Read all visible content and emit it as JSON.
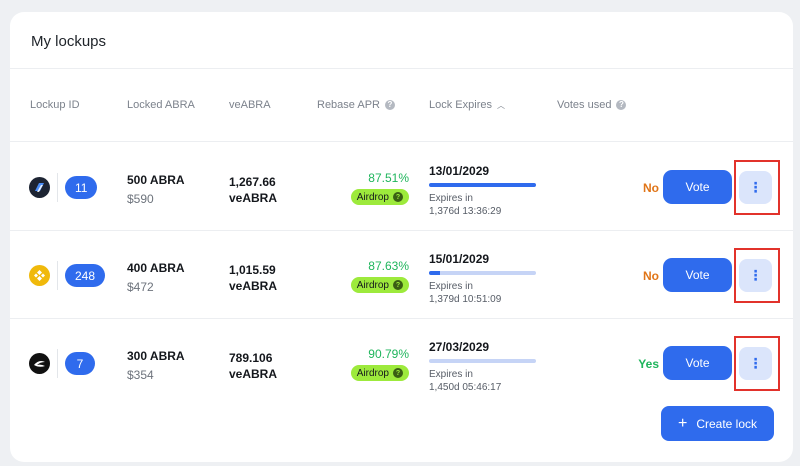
{
  "title": "My lockups",
  "columns": {
    "lockup_id": "Lockup ID",
    "locked_abra": "Locked ABRA",
    "veabra": "veABRA",
    "rebase_apr": "Rebase APR",
    "lock_expires": "Lock Expires",
    "votes_used": "Votes used"
  },
  "rows": [
    {
      "token_icon": "abracadabra-token-icon",
      "id": "11",
      "locked_amount": "500 ABRA",
      "locked_usd": "$590",
      "veabra_value": "1,267.66",
      "veabra_unit": "veABRA",
      "apr": "87.51%",
      "airdrop_label": "Airdrop",
      "expires_date": "13/01/2029",
      "expires_progress": 1.0,
      "expires_in_label": "Expires in",
      "expires_in_value": "1,376d 13:36:29",
      "votes_used": "No",
      "vote_label": "Vote",
      "menu_glyph": "⋮"
    },
    {
      "token_icon": "binance-token-icon",
      "id": "248",
      "locked_amount": "400 ABRA",
      "locked_usd": "$472",
      "veabra_value": "1,015.59",
      "veabra_unit": "veABRA",
      "apr": "87.63%",
      "airdrop_label": "Airdrop",
      "expires_date": "15/01/2029",
      "expires_progress": 0.1,
      "expires_in_label": "Expires in",
      "expires_in_value": "1,379d 10:51:09",
      "votes_used": "No",
      "vote_label": "Vote",
      "menu_glyph": "⋮"
    },
    {
      "token_icon": "swift-token-icon",
      "id": "7",
      "locked_amount": "300 ABRA",
      "locked_usd": "$354",
      "veabra_value": "789.106",
      "veabra_unit": "veABRA",
      "apr": "90.79%",
      "airdrop_label": "Airdrop",
      "expires_date": "27/03/2029",
      "expires_progress": 0.0,
      "expires_in_label": "Expires in",
      "expires_in_value": "1,450d 05:46:17",
      "votes_used": "Yes",
      "vote_label": "Vote",
      "menu_glyph": "⋮"
    }
  ],
  "create_lock": {
    "icon": "+",
    "label": "Create lock"
  },
  "colors": {
    "accent": "#2f6bed",
    "apr_green": "#1fb55c",
    "airdrop_bg": "#9dea3c",
    "votes_no": "#e07518",
    "votes_yes": "#1fb55c",
    "highlight": "#e2322b"
  }
}
